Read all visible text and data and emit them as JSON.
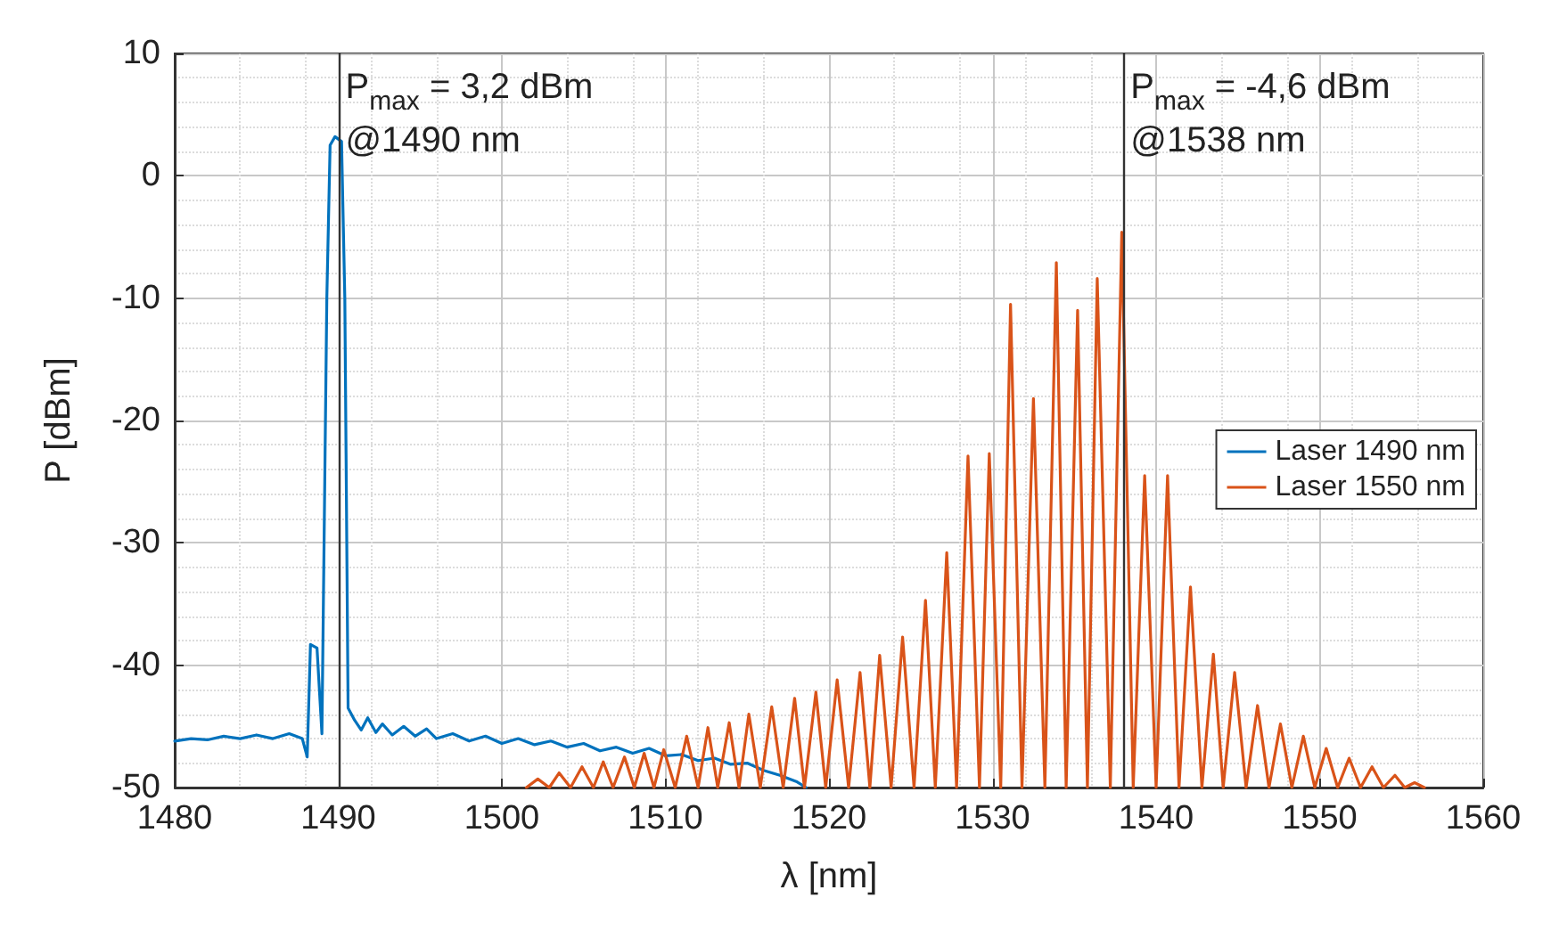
{
  "chart_data": {
    "type": "line",
    "xlabel": "λ [nm]",
    "ylabel": "P [dBm]",
    "xlim": [
      1480,
      1560
    ],
    "xticks": [
      1480,
      1490,
      1500,
      1510,
      1520,
      1530,
      1540,
      1550,
      1560
    ],
    "ylim": [
      -50,
      10
    ],
    "yticks": [
      -50,
      -40,
      -30,
      -20,
      -10,
      0,
      10
    ],
    "grid": true,
    "legend": "right",
    "line_style": "solid",
    "marker": "none",
    "series": [
      {
        "name": "Laser 1490 nm",
        "color": "#0072bd",
        "x": [
          1480,
          1481,
          1482,
          1483,
          1484,
          1485,
          1486,
          1487,
          1487.8,
          1488.1,
          1488.3,
          1488.7,
          1489.0,
          1489.3,
          1489.5,
          1489.8,
          1490.2,
          1490.4,
          1490.6,
          1491,
          1491.4,
          1491.8,
          1492.3,
          1492.7,
          1493.3,
          1494,
          1494.7,
          1495.4,
          1496,
          1497,
          1498,
          1499,
          1500,
          1501,
          1502,
          1503,
          1504,
          1505,
          1506,
          1507,
          1508,
          1509,
          1510,
          1511,
          1512,
          1513,
          1514,
          1515,
          1516,
          1517,
          1518,
          1518.6
        ],
        "values": [
          -46.2,
          -46,
          -46.1,
          -45.8,
          -46,
          -45.7,
          -46,
          -45.6,
          -46,
          -47.5,
          -38.3,
          -38.6,
          -45.6,
          -10,
          2.5,
          3.2,
          2.8,
          -10,
          -43.5,
          -44.5,
          -45.3,
          -44.3,
          -45.5,
          -44.8,
          -45.7,
          -45,
          -45.8,
          -45.2,
          -46,
          -45.6,
          -46.2,
          -45.8,
          -46.4,
          -46,
          -46.5,
          -46.2,
          -46.7,
          -46.4,
          -47,
          -46.7,
          -47.2,
          -46.8,
          -47.4,
          -47.3,
          -47.8,
          -47.6,
          -48.1,
          -48,
          -48.6,
          -49,
          -49.5,
          -50
        ]
      },
      {
        "name": "Laser 1550 nm",
        "color": "#d95319",
        "x": [
          1501.5,
          1502.2,
          1502.9,
          1503.5,
          1504.2,
          1504.9,
          1505.6,
          1506.2,
          1506.8,
          1507.5,
          1508.1,
          1508.7,
          1509.3,
          1509.9,
          1510.6,
          1511.3,
          1512,
          1512.6,
          1513.2,
          1513.9,
          1514.5,
          1515.1,
          1515.8,
          1516.5,
          1517.2,
          1517.9,
          1518.5,
          1519.2,
          1519.8,
          1520.5,
          1521.2,
          1521.9,
          1522.5,
          1523.1,
          1523.8,
          1524.5,
          1525.2,
          1525.9,
          1526.5,
          1527.2,
          1527.8,
          1528.5,
          1529.2,
          1529.8,
          1530.5,
          1531.1,
          1531.8,
          1532.5,
          1533.2,
          1533.9,
          1534.5,
          1535.2,
          1535.8,
          1536.4,
          1537.2,
          1537.9,
          1538.6,
          1539.3,
          1540,
          1540.7,
          1541.4,
          1542.1,
          1542.8,
          1543.5,
          1544.1,
          1544.8,
          1545.5,
          1546.2,
          1546.9,
          1547.6,
          1548.3,
          1549,
          1549.7,
          1550.4,
          1551.1,
          1551.8,
          1552.5,
          1553.2,
          1553.9,
          1554.6,
          1555.2,
          1555.8,
          1556.4
        ],
        "values": [
          -50,
          -49.3,
          -50,
          -48.8,
          -50,
          -48.3,
          -50,
          -47.9,
          -50,
          -47.5,
          -50,
          -47.2,
          -50,
          -46.9,
          -50,
          -45.8,
          -50,
          -45.1,
          -50,
          -44.7,
          -50,
          -44,
          -50,
          -43.4,
          -50,
          -42.7,
          -50,
          -42.2,
          -50,
          -41.2,
          -50,
          -40.6,
          -50,
          -39.2,
          -50,
          -37.7,
          -50,
          -34.7,
          -50,
          -30.8,
          -50,
          -22.9,
          -50,
          -22.7,
          -50,
          -10.5,
          -50,
          -18.2,
          -50,
          -7.1,
          -50,
          -11,
          -50,
          -8.4,
          -50,
          -4.6,
          -50,
          -24.5,
          -50,
          -24.5,
          -50,
          -33.6,
          -50,
          -39.1,
          -50,
          -40.6,
          -50,
          -43.3,
          -50,
          -44.8,
          -50,
          -45.8,
          -50,
          -46.8,
          -50,
          -47.6,
          -50,
          -48.3,
          -50,
          -49,
          -50,
          -49.6,
          -50
        ]
      }
    ],
    "ref_lines": [
      {
        "axis": "x",
        "value": 1490,
        "color": "#333333",
        "label": "P$_{max}$ = 3,2 dBm\n@1490 nm"
      },
      {
        "axis": "x",
        "value": 1538,
        "color": "#333333",
        "label": "P$_{max}$ = -4,6 dBm\n@1538 nm"
      }
    ]
  }
}
